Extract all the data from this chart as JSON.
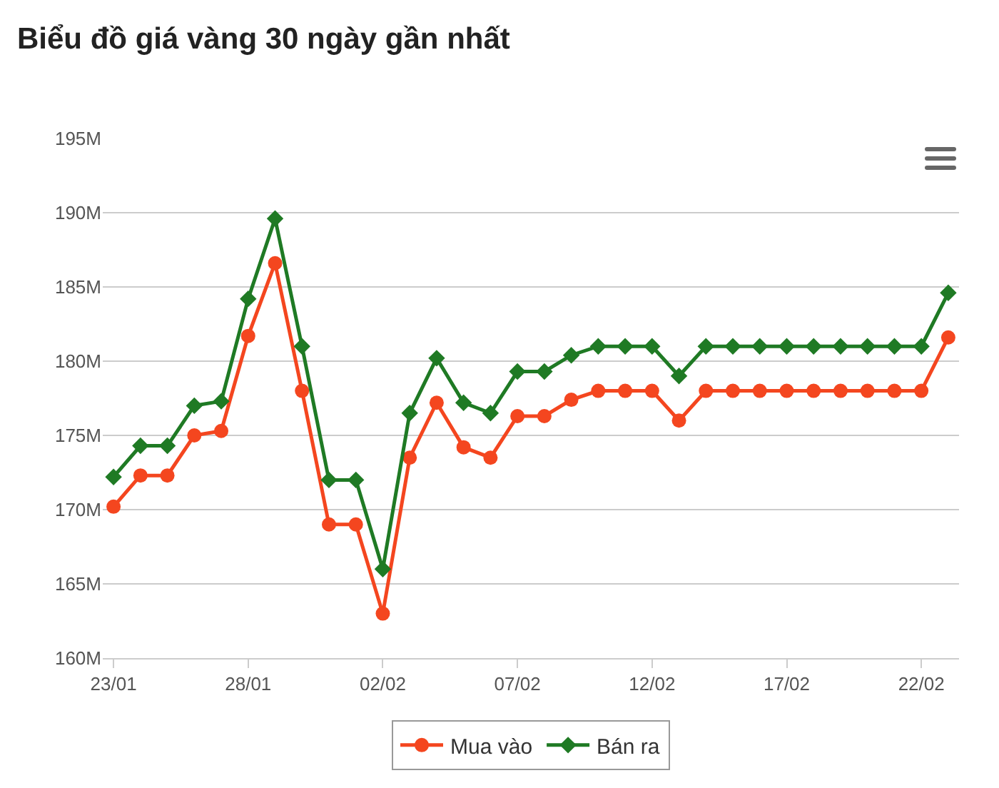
{
  "chart_data": {
    "type": "line",
    "title": "Biểu đồ giá vàng 30 ngày gần nhất",
    "categories": [
      "23/01",
      null,
      null,
      null,
      null,
      "28/01",
      null,
      null,
      null,
      null,
      "02/02",
      null,
      null,
      null,
      null,
      "07/02",
      null,
      null,
      null,
      null,
      "12/02",
      null,
      null,
      null,
      null,
      "17/02",
      null,
      null,
      null,
      null,
      "22/02",
      null
    ],
    "series": [
      {
        "name": "Mua vào",
        "color": "#f4461f",
        "marker": "circle",
        "values": [
          170200000,
          172300000,
          172300000,
          175000000,
          175300000,
          181700000,
          186600000,
          178000000,
          169000000,
          169000000,
          163000000,
          173500000,
          177200000,
          174200000,
          173500000,
          176300000,
          176300000,
          177400000,
          178000000,
          178000000,
          178000000,
          176000000,
          178000000,
          178000000,
          178000000,
          178000000,
          178000000,
          178000000,
          178000000,
          178000000,
          178000000,
          181600000
        ]
      },
      {
        "name": "Bán ra",
        "color": "#1f7a24",
        "marker": "diamond",
        "values": [
          172200000,
          174300000,
          174300000,
          177000000,
          177300000,
          184200000,
          189600000,
          181000000,
          172000000,
          172000000,
          166000000,
          176500000,
          180200000,
          177200000,
          176500000,
          179300000,
          179300000,
          180400000,
          181000000,
          181000000,
          181000000,
          179000000,
          181000000,
          181000000,
          181000000,
          181000000,
          181000000,
          181000000,
          181000000,
          181000000,
          181000000,
          184600000
        ]
      }
    ],
    "ylim": [
      160000000,
      195000000
    ],
    "yticks": [
      {
        "value": 160000000,
        "label": "160M"
      },
      {
        "value": 165000000,
        "label": "165M"
      },
      {
        "value": 170000000,
        "label": "170M"
      },
      {
        "value": 175000000,
        "label": "175M"
      },
      {
        "value": 180000000,
        "label": "180M"
      },
      {
        "value": 185000000,
        "label": "185M"
      },
      {
        "value": 190000000,
        "label": "190M"
      },
      {
        "value": 195000000,
        "label": "195M"
      }
    ],
    "grid": "y",
    "legend": "bottom"
  }
}
